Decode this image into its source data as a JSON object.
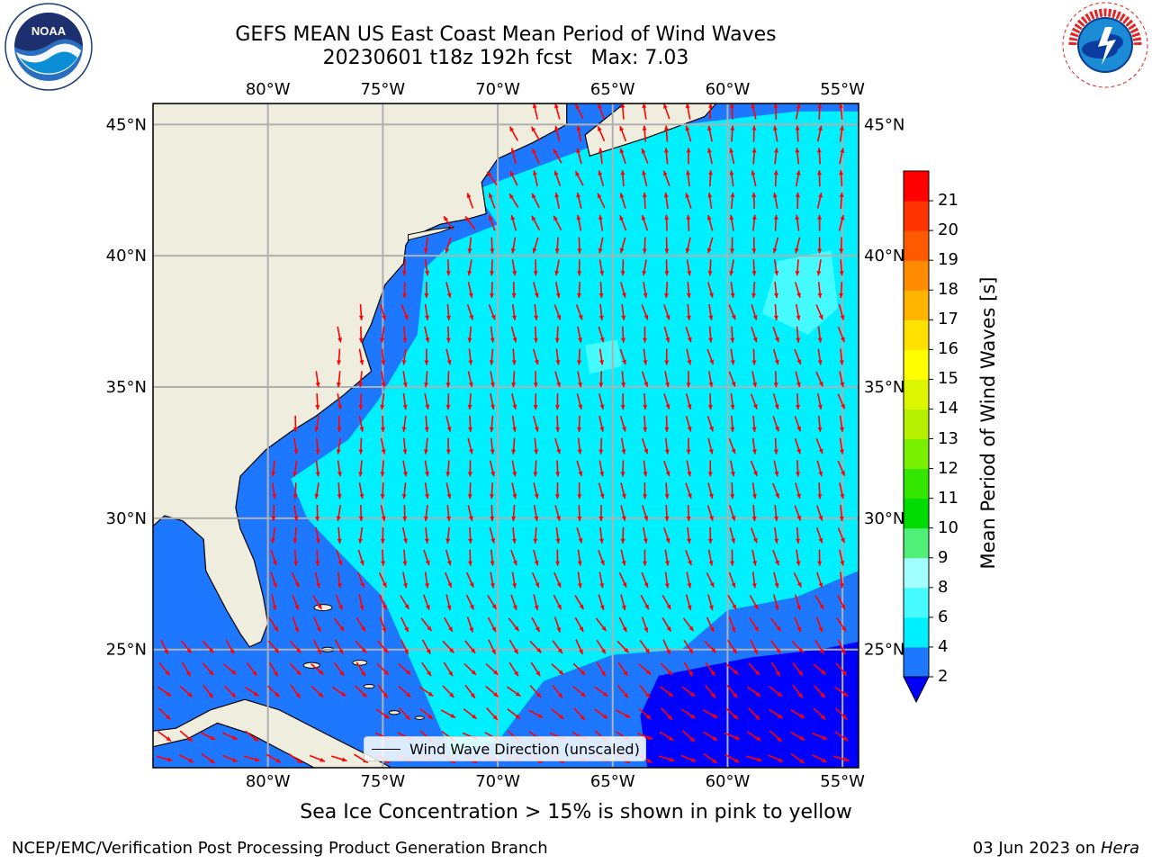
{
  "header": {
    "title_line1": "GEFS MEAN US East Coast Mean Period of Wind Waves",
    "title_line2": "20230601 t18z 192h fcst   Max: 7.03"
  },
  "logos": {
    "left": {
      "name": "NOAA",
      "text": "NOAA",
      "ring_text": "NATIONAL OCEANIC AND ATMOSPHERIC ADMINISTRATION · U.S. DEPARTMENT OF COMMERCE"
    },
    "right": {
      "name": "National Weather Service",
      "ring_text": "NATIONAL WEATHER SERVICE"
    }
  },
  "map": {
    "lon_labels": [
      "80°W",
      "75°W",
      "70°W",
      "65°W",
      "60°W",
      "55°W"
    ],
    "lat_labels": [
      "45°N",
      "40°N",
      "35°N",
      "30°N",
      "25°N"
    ],
    "lon_range": [
      -85,
      -54.3
    ],
    "lat_range": [
      20.5,
      45.8
    ],
    "gridlines": true,
    "land_color": "#efedde",
    "coastline_color": "#000000",
    "arrow_color": "#ff0000"
  },
  "legend": {
    "label": "Wind Wave Direction (unscaled)"
  },
  "colorbar": {
    "title": "Mean Period of Wind Waves [s]",
    "ticks": [
      "2",
      "4",
      "6",
      "8",
      "9",
      "10",
      "11",
      "12",
      "13",
      "14",
      "15",
      "16",
      "17",
      "18",
      "19",
      "20",
      "21"
    ],
    "colors": [
      "#1e78ff",
      "#00f0ff",
      "#46fbff",
      "#a2ffff",
      "#50f078",
      "#00dc00",
      "#32e600",
      "#78f000",
      "#b4f000",
      "#dcf500",
      "#ffff00",
      "#ffe100",
      "#ffb400",
      "#ff8c00",
      "#ff5a00",
      "#ff3200",
      "#ff0000"
    ],
    "under_color": "#0000ff"
  },
  "chart_data": {
    "type": "heatmap",
    "title": "GEFS MEAN US East Coast Mean Period of Wind Waves",
    "variable": "Mean Period of Wind Waves [s]",
    "max_value": 7.03,
    "colorbar_range": [
      2,
      21
    ],
    "regions": [
      {
        "area": "open ocean 25–42°N, 55–76°W",
        "period_range_s": [
          4,
          6
        ]
      },
      {
        "area": "near-coast shelf waters",
        "period_range_s": [
          2,
          4
        ]
      },
      {
        "area": "southeast corner 20.5–24°N, 55–63°W",
        "period_range_s": [
          0,
          2
        ]
      },
      {
        "area": "patches near 38–40°N, 56–60°W",
        "period_range_s": [
          6,
          7.03
        ]
      }
    ]
  },
  "footer": {
    "ice_note": "Sea Ice Concentration > 15% is shown in pink to yellow",
    "left": "NCEP/EMC/Verification Post Processing Product Generation Branch",
    "date": "03 Jun 2023 on ",
    "machine": "Hera"
  }
}
